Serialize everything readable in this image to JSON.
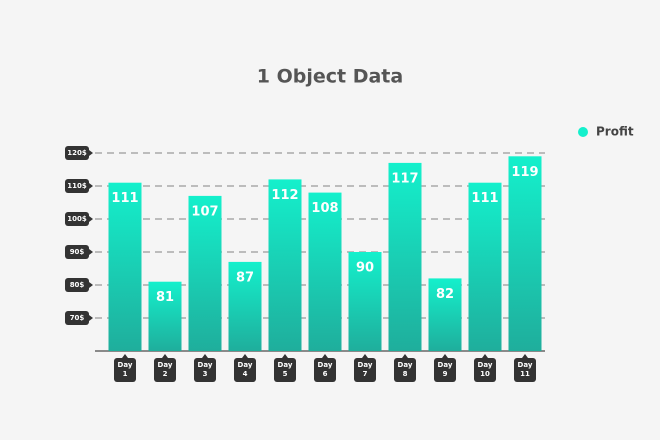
{
  "chart_data": {
    "type": "bar",
    "title": "1 Object Data",
    "categories": [
      "Day 1",
      "Day 2",
      "Day 3",
      "Day 4",
      "Day 5",
      "Day 6",
      "Day 7",
      "Day 8",
      "Day 9",
      "Day 10",
      "Day 11"
    ],
    "series": [
      {
        "name": "Profit",
        "color": "#14f0cc",
        "values": [
          111,
          81,
          107,
          87,
          112,
          108,
          90,
          117,
          82,
          111,
          119
        ]
      }
    ],
    "ylim": [
      60,
      120
    ],
    "yticks": [
      {
        "value": 70,
        "label": "70$"
      },
      {
        "value": 80,
        "label": "80$"
      },
      {
        "value": 90,
        "label": "90$"
      },
      {
        "value": 100,
        "label": "100$"
      },
      {
        "value": 110,
        "label": "110$"
      },
      {
        "value": 120,
        "label": "120$"
      }
    ],
    "grid": true,
    "legend": "top-right"
  }
}
